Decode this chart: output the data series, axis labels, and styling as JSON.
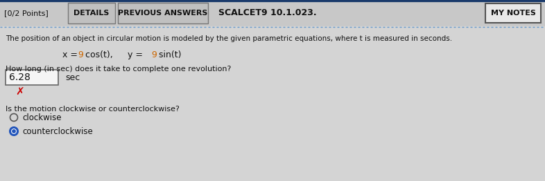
{
  "bg_color": "#c8c8c8",
  "header_bg": "#c8c8c8",
  "content_bg": "#d4d4d4",
  "top_border_color": "#1a3a6b",
  "dotted_line_color": "#6699cc",
  "header_text_left": "[0/2 Points]",
  "btn1": "DETAILS",
  "btn2": "PREVIOUS ANSWERS",
  "header_course": "SCALCET9 10.1.023.",
  "btn_notes": "MY NOTES",
  "problem_text": "The position of an object in circular motion is modeled by the given parametric equations, where t is measured in seconds.",
  "eq_x_prefix": "x = ",
  "eq_x_num": "9",
  "eq_x_suffix": " cos(t),",
  "eq_y_prefix": "   y = ",
  "eq_y_num": "9",
  "eq_y_suffix": " sin(t)",
  "question1": "How long (in sec) does it take to complete one revolution?",
  "answer_value": "6.28",
  "answer_unit": "sec",
  "question2": "Is the motion clockwise or counterclockwise?",
  "option1": "clockwise",
  "option2": "counterclockwise",
  "text_color": "#111111",
  "red_color": "#cc0000",
  "input_box_color": "#f5f5f5",
  "radio_fill_color": "#2255bb",
  "eq_highlight_color": "#cc6600",
  "btn_bg": "#c0c0c0",
  "btn_border": "#777777",
  "notes_bg": "#e8e8e8",
  "notes_border": "#555555"
}
